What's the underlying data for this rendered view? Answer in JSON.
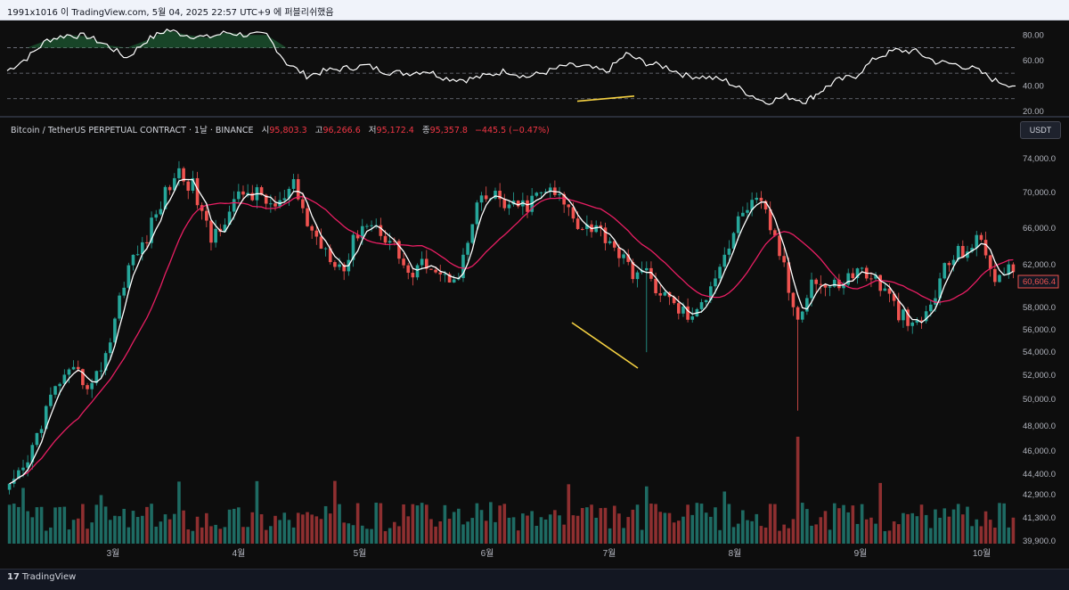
{
  "screenshot_caption": "1991x1016 이 TradingView.com, 5월 04, 2025 22:57 UTC+9 에 퍼블리쉬했음",
  "legend": {
    "symbol": "Bitcoin / TetherUS PERPETUAL CONTRACT · 1날 · BINANCE",
    "open_label": "시",
    "open_value": "95,803.3",
    "high_label": "고",
    "high_value": "96,266.6",
    "low_label": "저",
    "low_value": "95,172.4",
    "close_label": "종",
    "close_value": "95,357.8",
    "change": "−445.5 (−0.47%)"
  },
  "currency_button": "USDT",
  "last_price_label": "60,606.4",
  "brand": {
    "logo": "17",
    "name": "TradingView"
  },
  "colors": {
    "up": "#26a69a",
    "down": "#ef5350",
    "ma_fast": "#ffffff",
    "ma_slow": "#e91e63",
    "divergence": "#f5d142",
    "price_label_border": "#ef5350"
  },
  "chart_data": [
    {
      "type": "line",
      "name": "RSI",
      "x": [
        0,
        4,
        8,
        12,
        16,
        20,
        24,
        28,
        32,
        36,
        40,
        44,
        48,
        52,
        56,
        60,
        64,
        68,
        72,
        76,
        80,
        84,
        88,
        92,
        96,
        100,
        104,
        108,
        112,
        116,
        120,
        124,
        128,
        132,
        136,
        140,
        144,
        148,
        152,
        156,
        160,
        163,
        166,
        170,
        174,
        178,
        182,
        186,
        190,
        194,
        198,
        202
      ],
      "values": [
        52,
        62,
        76,
        80,
        79,
        72,
        62,
        76,
        84,
        80,
        78,
        82,
        80,
        80,
        58,
        48,
        52,
        54,
        56,
        51,
        50,
        52,
        46,
        45,
        48,
        52,
        47,
        51,
        56,
        55,
        51,
        65,
        58,
        55,
        48,
        47,
        44,
        35,
        27,
        32,
        28,
        36,
        44,
        48,
        62,
        68,
        67,
        59,
        57,
        53,
        44,
        40
      ],
      "yticks": [
        "80.00",
        "60.00",
        "40.00",
        "20.00"
      ],
      "ylim": [
        20,
        90
      ],
      "dashed_levels": [
        70,
        50,
        30
      ]
    },
    {
      "type": "candlestick",
      "name": "Bitcoin / TetherUS PERPETUAL CONTRACT",
      "x_labels": [
        "3월",
        "4월",
        "5월",
        "6월",
        "7월",
        "8월",
        "9월",
        "10월"
      ],
      "yticks": [
        "74,000.0",
        "70,000.0",
        "66,000.0",
        "62,000.0",
        "58,000.0",
        "56,000.0",
        "54,000.0",
        "52,000.0",
        "50,000.0",
        "48,000.0",
        "46,000.0",
        "44,400.0",
        "42,900.0",
        "41,300.0",
        "39,900.0"
      ],
      "scale": "log",
      "ylim": [
        39400,
        76500
      ],
      "close_path": [
        42900,
        44500,
        48500,
        51500,
        52000,
        51000,
        55000,
        62000,
        64500,
        69000,
        73000,
        71000,
        65000,
        68000,
        70500,
        70000,
        68500,
        71000,
        66000,
        64000,
        62000,
        67000,
        66500,
        64500,
        61000,
        63000,
        61000,
        62000,
        69000,
        70000,
        68500,
        69000,
        70800,
        69500,
        67000,
        66500,
        65000,
        62000,
        61500,
        59500,
        58000,
        57000,
        61000,
        64500,
        69000,
        68800,
        64000,
        57000,
        61000,
        60000,
        61000,
        62000,
        60500,
        58000,
        56000,
        58000,
        62500,
        64000,
        65000,
        61000,
        62000
      ],
      "events": [
        {
          "index": 47,
          "low": 49000,
          "high": 57500
        },
        {
          "index": 38,
          "low": 54000,
          "high": 60000
        }
      ],
      "volume_spike_index": 47
    }
  ]
}
